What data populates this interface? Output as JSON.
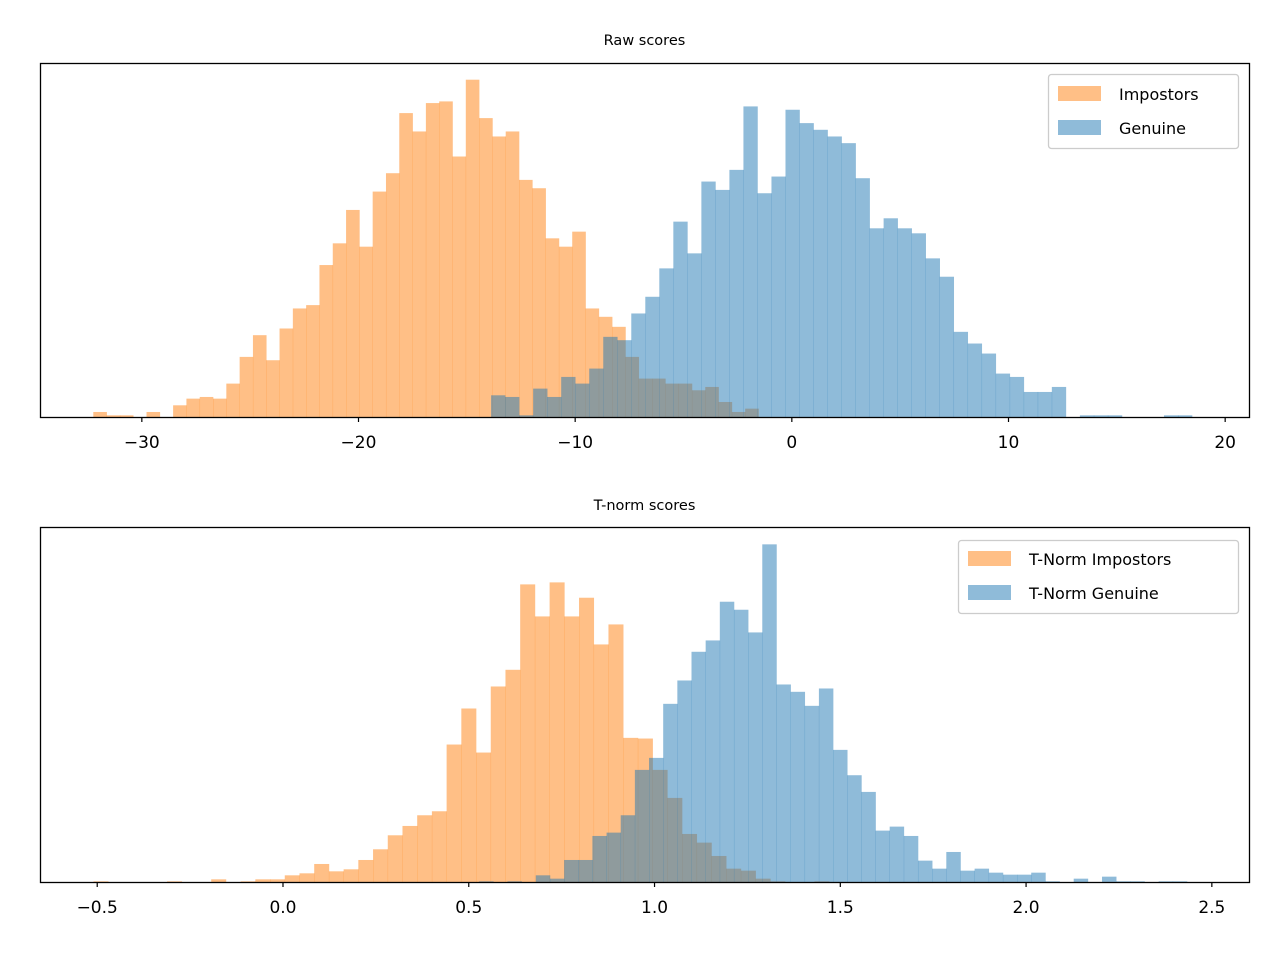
{
  "colors": {
    "impostors": "#ff7f0e",
    "genuine": "#1f77b4",
    "bar_alpha": 0.5
  },
  "chart_data": [
    {
      "type": "histogram",
      "title": "Raw scores",
      "xlabel": "",
      "ylabel": "",
      "xlim": [
        -34.7,
        21.1
      ],
      "ylim": [
        0,
        212
      ],
      "y_ticks_shown": false,
      "grid": false,
      "legend_position": "top-right",
      "xticks": [
        -30,
        -20,
        -10,
        0,
        10,
        20
      ],
      "xtick_labels": [
        "−30",
        "−20",
        "−10",
        "0",
        "10",
        "20"
      ],
      "series": [
        {
          "name": "Impostors",
          "color": "#ff7f0e",
          "bin_start": -32.24,
          "bin_width": 0.614,
          "counts": [
            3,
            1,
            1,
            0,
            3,
            0,
            7,
            11,
            12,
            11,
            20,
            36,
            49,
            34,
            53,
            65,
            67,
            91,
            104,
            124,
            102,
            135,
            146,
            182,
            171,
            188,
            189,
            156,
            202,
            179,
            168,
            171,
            142,
            137,
            107,
            102,
            111,
            65,
            60,
            54,
            36,
            23,
            23,
            20,
            20,
            16,
            18,
            9,
            3,
            5
          ]
        },
        {
          "name": "Genuine",
          "color": "#1f77b4",
          "bin_start": -13.88,
          "bin_width": 0.647,
          "counts": [
            13,
            12,
            1,
            17,
            12,
            24,
            20,
            29,
            48,
            46,
            62,
            72,
            89,
            117,
            98,
            141,
            136,
            148,
            186,
            134,
            144,
            184,
            176,
            172,
            168,
            164,
            143,
            113,
            119,
            113,
            110,
            95,
            84,
            51,
            44,
            38,
            26,
            24,
            15,
            15,
            18,
            0,
            1,
            1,
            1,
            0,
            0,
            0,
            1,
            1
          ]
        }
      ]
    },
    {
      "type": "histogram",
      "title": "T-norm scores",
      "xlabel": "",
      "ylabel": "",
      "xlim": [
        -0.654,
        2.6
      ],
      "ylim": [
        0,
        532
      ],
      "y_ticks_shown": false,
      "grid": false,
      "legend_position": "top-right",
      "xticks": [
        -0.5,
        0.0,
        0.5,
        1.0,
        1.5,
        2.0,
        2.5
      ],
      "xtick_labels": [
        "−0.5",
        "0.0",
        "0.5",
        "1.0",
        "1.5",
        "2.0",
        "2.5"
      ],
      "series": [
        {
          "name": "T-Norm Impostors",
          "color": "#ff7f0e",
          "bin_start": -0.51,
          "bin_width": 0.0396,
          "counts": [
            1,
            0,
            0,
            0,
            0,
            1,
            0,
            0,
            4,
            0,
            1,
            4,
            4,
            10,
            13,
            27,
            16,
            19,
            33,
            49,
            70,
            84,
            100,
            106,
            206,
            260,
            194,
            293,
            318,
            446,
            398,
            449,
            398,
            426,
            356,
            386,
            216,
            215,
            168,
            126,
            72,
            59,
            39,
            20,
            17,
            5,
            1,
            0,
            0,
            1
          ]
        },
        {
          "name": "T-Norm Genuine",
          "color": "#1f77b4",
          "bin_start": 0.528,
          "bin_width": 0.0381,
          "counts": [
            1,
            0,
            1,
            0,
            10,
            5,
            33,
            33,
            69,
            74,
            100,
            168,
            186,
            267,
            302,
            345,
            362,
            420,
            408,
            374,
            506,
            296,
            285,
            264,
            290,
            198,
            160,
            135,
            77,
            83,
            69,
            32,
            20,
            45,
            17,
            20,
            14,
            11,
            11,
            14,
            1,
            0,
            5,
            0,
            8,
            1,
            1,
            0,
            1,
            1
          ]
        }
      ]
    }
  ]
}
